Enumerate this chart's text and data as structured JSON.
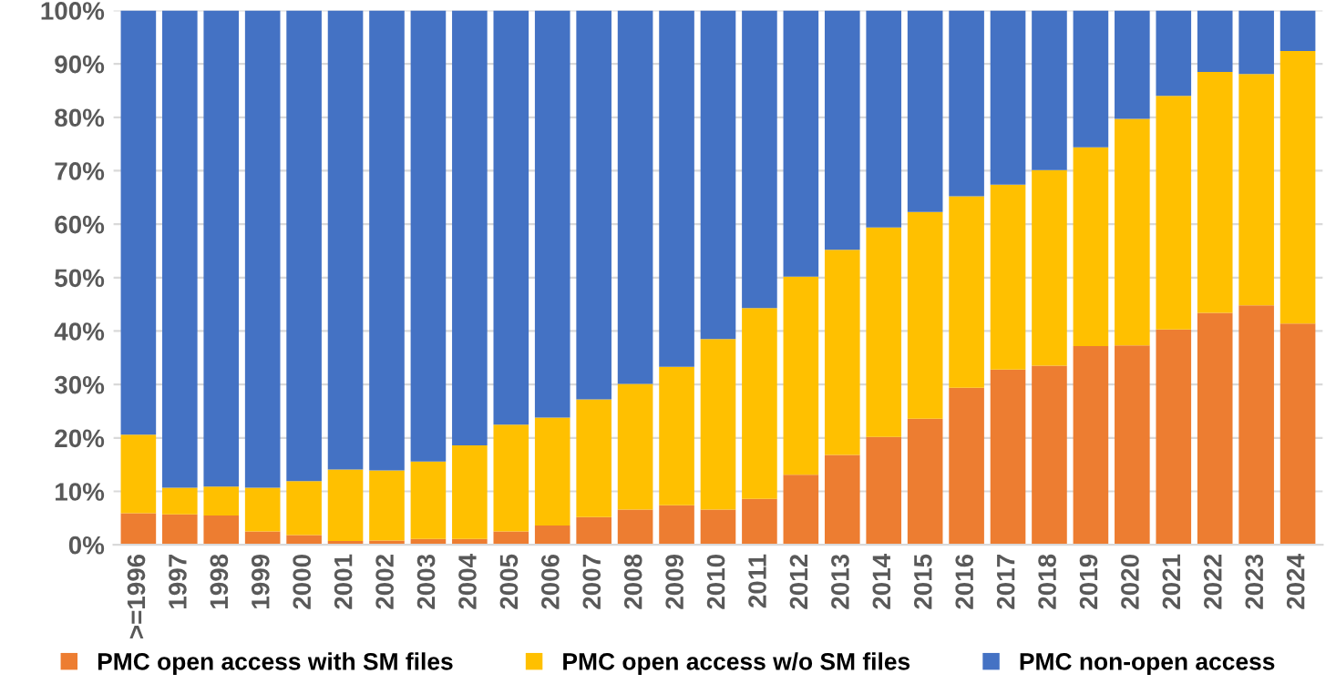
{
  "chart_data": {
    "type": "bar",
    "stacked": true,
    "categories": [
      ">=1996",
      "1997",
      "1998",
      "1999",
      "2000",
      "2001",
      "2002",
      "2003",
      "2004",
      "2005",
      "2006",
      "2007",
      "2008",
      "2009",
      "2010",
      "2011",
      "2012",
      "2013",
      "2014",
      "2015",
      "2016",
      "2017",
      "2018",
      "2019",
      "2020",
      "2021",
      "2022",
      "2023",
      "2024"
    ],
    "series": [
      {
        "name": "PMC open access with SM files",
        "color": "#ed7d31",
        "values": [
          5.9,
          5.7,
          5.5,
          2.5,
          1.8,
          0.7,
          0.8,
          1.1,
          1.1,
          2.5,
          3.6,
          5.2,
          6.6,
          7.4,
          6.6,
          8.6,
          13.1,
          16.8,
          20.2,
          23.6,
          29.4,
          32.8,
          33.5,
          37.2,
          37.3,
          40.3,
          43.4,
          44.8,
          41.4
        ]
      },
      {
        "name": "PMC open access w/o SM files",
        "color": "#ffc000",
        "values": [
          14.7,
          5.0,
          5.4,
          8.2,
          10.1,
          13.4,
          13.1,
          14.5,
          17.5,
          20.0,
          20.2,
          22.0,
          23.5,
          25.9,
          31.9,
          35.7,
          37.1,
          38.4,
          39.2,
          38.7,
          35.8,
          34.6,
          36.6,
          37.2,
          42.4,
          43.7,
          45.1,
          43.3,
          51.0
        ]
      },
      {
        "name": "PMC non-open access",
        "color": "#4472c4",
        "values": [
          79.4,
          89.3,
          89.1,
          89.3,
          88.1,
          85.9,
          86.1,
          84.4,
          81.4,
          77.5,
          76.2,
          72.8,
          69.9,
          66.7,
          61.5,
          55.7,
          49.8,
          44.8,
          40.6,
          37.7,
          34.8,
          32.6,
          29.9,
          25.6,
          20.3,
          16.0,
          11.5,
          11.9,
          7.6
        ]
      }
    ],
    "ylim": [
      0,
      100
    ],
    "yticks": [
      {
        "value": 0,
        "label": "0%"
      },
      {
        "value": 10,
        "label": "10%"
      },
      {
        "value": 20,
        "label": "20%"
      },
      {
        "value": 30,
        "label": "30%"
      },
      {
        "value": 40,
        "label": "40%"
      },
      {
        "value": 50,
        "label": "50%"
      },
      {
        "value": 60,
        "label": "60%"
      },
      {
        "value": 70,
        "label": "70%"
      },
      {
        "value": 80,
        "label": "80%"
      },
      {
        "value": 90,
        "label": "90%"
      },
      {
        "value": 100,
        "label": "100%"
      }
    ],
    "grid": "y",
    "legend": "bottom"
  }
}
